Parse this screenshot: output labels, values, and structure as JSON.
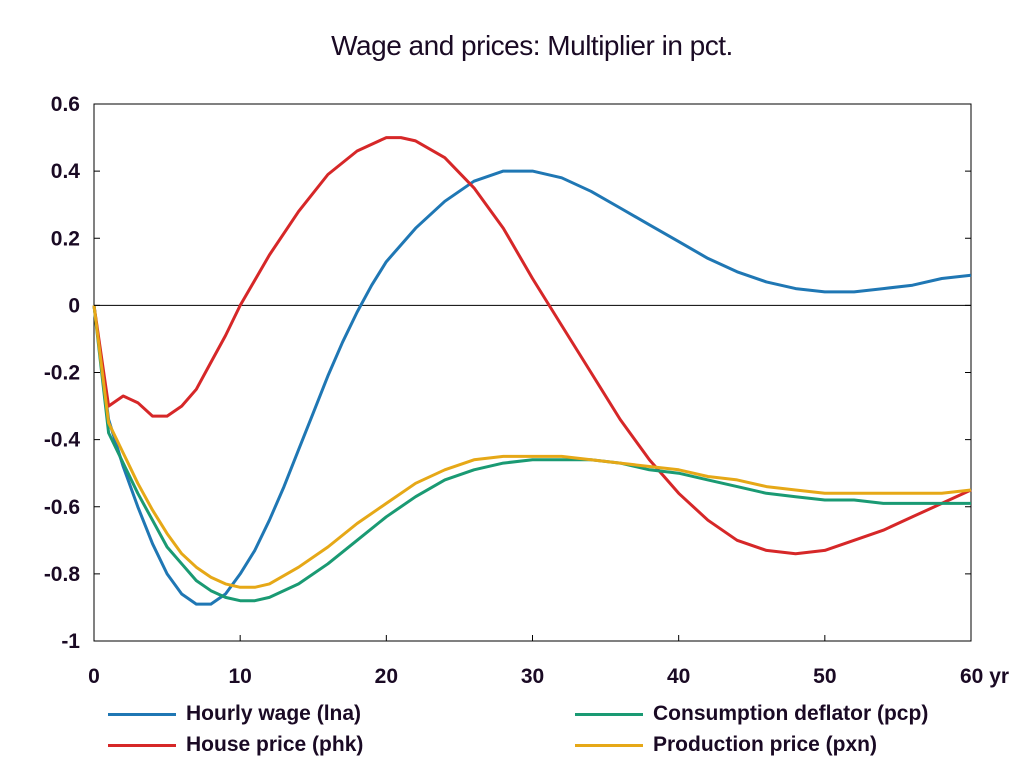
{
  "chart_data": {
    "type": "line",
    "title": "Wage and prices: Multiplier in pct.",
    "xlim": [
      0,
      60
    ],
    "ylim": [
      -1,
      0.6
    ],
    "x_ticks": [
      0,
      10,
      20,
      30,
      40,
      50,
      60
    ],
    "x_tick_labels": [
      "0",
      "10",
      "20",
      "30",
      "40",
      "50",
      "60 yr"
    ],
    "y_ticks": [
      0.6,
      0.4,
      0.2,
      0,
      -0.2,
      -0.4,
      -0.6,
      -0.8,
      -1
    ],
    "y_tick_labels": [
      "0.6",
      "0.4",
      "0.2",
      "0",
      "-0.2",
      "-0.4",
      "-0.6",
      "-0.8",
      "-1"
    ],
    "zero_line": true,
    "grid": false,
    "legend_position": "bottom",
    "series": [
      {
        "name": "Hourly wage (lna)",
        "color": "#1f77b4",
        "x": [
          0,
          1,
          2,
          3,
          4,
          5,
          6,
          7,
          8,
          9,
          10,
          11,
          12,
          13,
          14,
          15,
          16,
          17,
          18,
          19,
          20,
          22,
          24,
          26,
          28,
          30,
          32,
          34,
          36,
          38,
          40,
          42,
          44,
          46,
          48,
          50,
          52,
          54,
          56,
          58,
          60
        ],
        "y": [
          0,
          -0.34,
          -0.48,
          -0.6,
          -0.71,
          -0.8,
          -0.86,
          -0.89,
          -0.89,
          -0.86,
          -0.8,
          -0.73,
          -0.64,
          -0.54,
          -0.43,
          -0.32,
          -0.21,
          -0.11,
          -0.02,
          0.06,
          0.13,
          0.23,
          0.31,
          0.37,
          0.4,
          0.4,
          0.38,
          0.34,
          0.29,
          0.24,
          0.19,
          0.14,
          0.1,
          0.07,
          0.05,
          0.04,
          0.04,
          0.05,
          0.06,
          0.08,
          0.09
        ]
      },
      {
        "name": "House price (phk)",
        "color": "#d62728",
        "x": [
          0,
          1,
          2,
          3,
          4,
          5,
          6,
          7,
          8,
          9,
          10,
          12,
          14,
          16,
          18,
          20,
          21,
          22,
          24,
          26,
          28,
          30,
          32,
          34,
          36,
          38,
          40,
          42,
          44,
          46,
          48,
          50,
          52,
          54,
          56,
          58,
          60
        ],
        "y": [
          0,
          -0.3,
          -0.27,
          -0.29,
          -0.33,
          -0.33,
          -0.3,
          -0.25,
          -0.17,
          -0.09,
          0.0,
          0.15,
          0.28,
          0.39,
          0.46,
          0.5,
          0.5,
          0.49,
          0.44,
          0.35,
          0.23,
          0.08,
          -0.06,
          -0.2,
          -0.34,
          -0.46,
          -0.56,
          -0.64,
          -0.7,
          -0.73,
          -0.74,
          -0.73,
          -0.7,
          -0.67,
          -0.63,
          -0.59,
          -0.55
        ]
      },
      {
        "name": "Consumption deflator (pcp)",
        "color": "#1a9a73",
        "x": [
          0,
          1,
          2,
          3,
          4,
          5,
          6,
          7,
          8,
          9,
          10,
          11,
          12,
          14,
          16,
          18,
          20,
          22,
          24,
          26,
          28,
          30,
          32,
          34,
          36,
          38,
          40,
          42,
          44,
          46,
          48,
          50,
          52,
          54,
          56,
          58,
          60
        ],
        "y": [
          0,
          -0.38,
          -0.47,
          -0.56,
          -0.64,
          -0.72,
          -0.77,
          -0.82,
          -0.85,
          -0.87,
          -0.88,
          -0.88,
          -0.87,
          -0.83,
          -0.77,
          -0.7,
          -0.63,
          -0.57,
          -0.52,
          -0.49,
          -0.47,
          -0.46,
          -0.46,
          -0.46,
          -0.47,
          -0.49,
          -0.5,
          -0.52,
          -0.54,
          -0.56,
          -0.57,
          -0.58,
          -0.58,
          -0.59,
          -0.59,
          -0.59,
          -0.59
        ]
      },
      {
        "name": "Production price (pxn)",
        "color": "#e6a817",
        "x": [
          0,
          1,
          2,
          3,
          4,
          5,
          6,
          7,
          8,
          9,
          10,
          11,
          12,
          14,
          16,
          18,
          20,
          22,
          24,
          26,
          28,
          30,
          32,
          34,
          36,
          38,
          40,
          42,
          44,
          46,
          48,
          50,
          52,
          54,
          56,
          58,
          60
        ],
        "y": [
          0,
          -0.35,
          -0.44,
          -0.53,
          -0.61,
          -0.68,
          -0.74,
          -0.78,
          -0.81,
          -0.83,
          -0.84,
          -0.84,
          -0.83,
          -0.78,
          -0.72,
          -0.65,
          -0.59,
          -0.53,
          -0.49,
          -0.46,
          -0.45,
          -0.45,
          -0.45,
          -0.46,
          -0.47,
          -0.48,
          -0.49,
          -0.51,
          -0.52,
          -0.54,
          -0.55,
          -0.56,
          -0.56,
          -0.56,
          -0.56,
          -0.56,
          -0.55
        ]
      }
    ]
  }
}
